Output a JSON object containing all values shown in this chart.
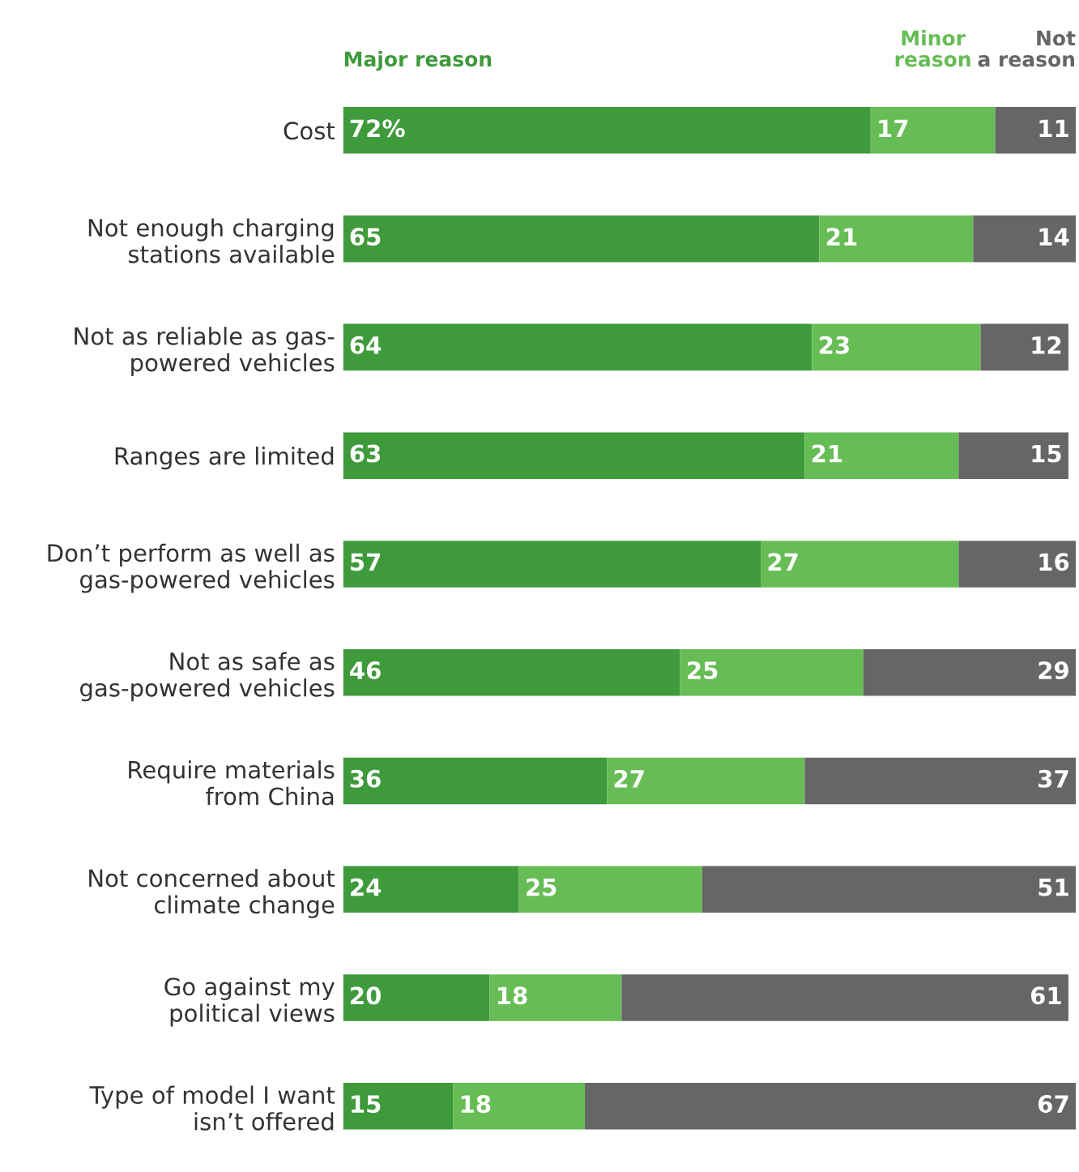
{
  "chart_data": {
    "type": "bar",
    "orientation": "horizontal",
    "stacked": true,
    "legend": "top",
    "tick_labels": "y",
    "xlim": [
      0,
      100
    ],
    "categories": [
      "Cost",
      "Not enough charging\nstations available",
      "Not as reliable as gas-\npowered vehicles",
      "Ranges are limited",
      "Don’t perform as well as\ngas-powered vehicles",
      "Not as safe as\ngas-powered vehicles",
      "Require materials\nfrom China",
      "Not concerned about\nclimate change",
      "Go against my\npolitical views",
      "Type of model I want\nisn’t offered"
    ],
    "series": [
      {
        "name": "Major reason",
        "color": "#3f9a3c",
        "values": [
          72,
          65,
          64,
          63,
          57,
          46,
          36,
          24,
          20,
          15
        ],
        "value_labels": [
          "72%",
          "65",
          "64",
          "63",
          "57",
          "46",
          "36",
          "24",
          "20",
          "15"
        ]
      },
      {
        "name": "Minor\nreason",
        "color": "#66bd55",
        "values": [
          17,
          21,
          23,
          21,
          27,
          25,
          27,
          25,
          18,
          18
        ],
        "value_labels": [
          "17",
          "21",
          "23",
          "21",
          "27",
          "25",
          "27",
          "25",
          "18",
          "18"
        ]
      },
      {
        "name": "Not\na reason",
        "color": "#666666",
        "values": [
          11,
          14,
          12,
          15,
          16,
          29,
          37,
          51,
          61,
          67
        ],
        "value_labels": [
          "11",
          "14",
          "12",
          "15",
          "16",
          "29",
          "37",
          "51",
          "61",
          "67"
        ]
      }
    ]
  }
}
